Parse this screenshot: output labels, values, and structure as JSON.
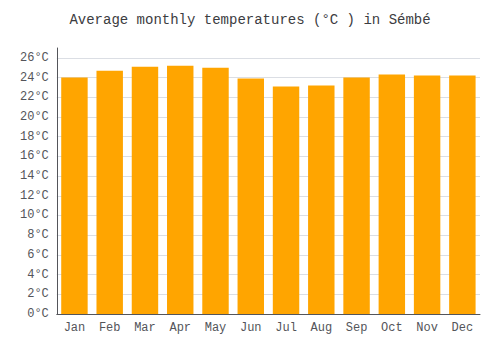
{
  "chart_data": {
    "type": "bar",
    "title": "Average monthly temperatures (°C ) in Sémbé",
    "categories": [
      "Jan",
      "Feb",
      "Mar",
      "Apr",
      "May",
      "Jun",
      "Jul",
      "Aug",
      "Sep",
      "Oct",
      "Nov",
      "Dec"
    ],
    "values": [
      24.0,
      24.7,
      25.1,
      25.2,
      25.0,
      23.9,
      23.1,
      23.2,
      24.0,
      24.3,
      24.2,
      24.2
    ],
    "color": "#FFA500",
    "ylim": [
      0,
      27
    ],
    "yticks": [
      {
        "value": 0,
        "label": "0°C"
      },
      {
        "value": 2,
        "label": "2°C"
      },
      {
        "value": 4,
        "label": "4°C"
      },
      {
        "value": 6,
        "label": "6°C"
      },
      {
        "value": 8,
        "label": "8°C"
      },
      {
        "value": 10,
        "label": "10°C"
      },
      {
        "value": 12,
        "label": "12°C"
      },
      {
        "value": 14,
        "label": "14°C"
      },
      {
        "value": 16,
        "label": "16°C"
      },
      {
        "value": 18,
        "label": "18°C"
      },
      {
        "value": 20,
        "label": "20°C"
      },
      {
        "value": 22,
        "label": "22°C"
      },
      {
        "value": 24,
        "label": "24°C"
      },
      {
        "value": 26,
        "label": "26°C"
      }
    ],
    "grid": true
  }
}
